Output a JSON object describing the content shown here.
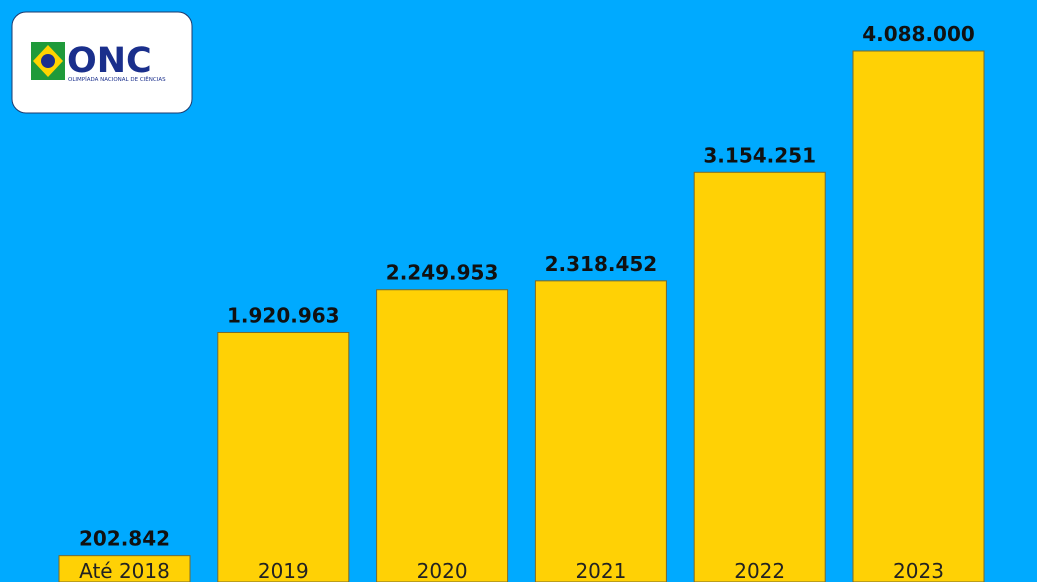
{
  "logo": {
    "title": "ONC",
    "subtitle": "OLIMPÍADA NACIONAL DE CIÊNCIAS"
  },
  "chart_data": {
    "type": "bar",
    "categories": [
      "Até 2018",
      "2019",
      "2020",
      "2021",
      "2022",
      "2023"
    ],
    "values": [
      202842,
      1920963,
      2249953,
      2318452,
      3154251,
      4088000
    ],
    "value_labels": [
      "202.842",
      "1.920.963",
      "2.249.953",
      "2.318.452",
      "3.154.251",
      "4.088.000"
    ],
    "color": "#ffd105"
  }
}
